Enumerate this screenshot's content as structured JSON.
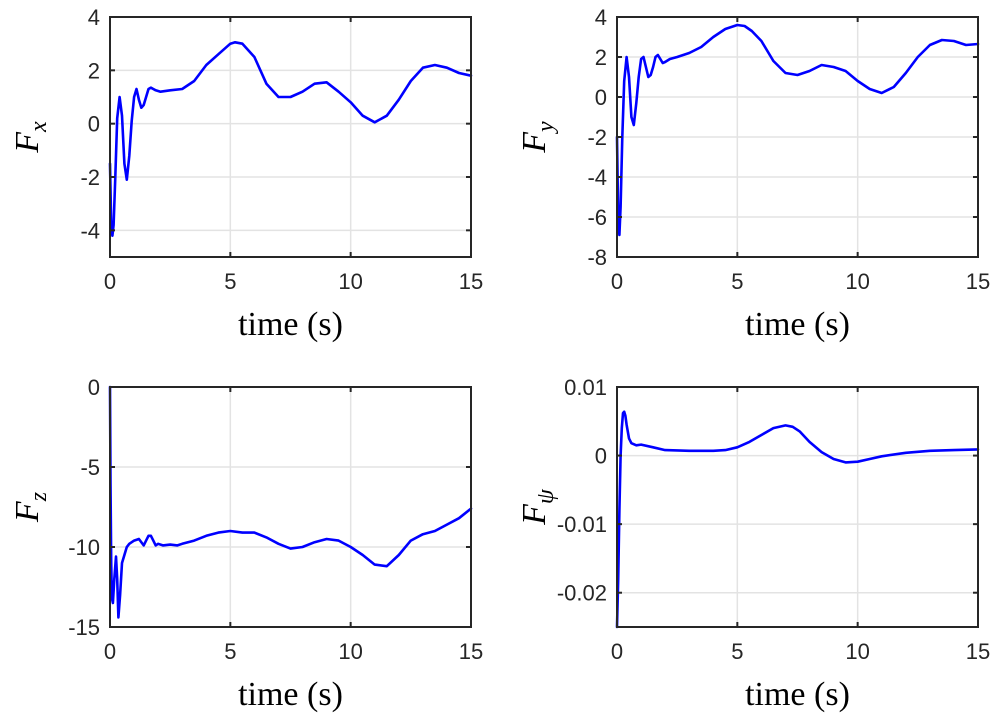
{
  "colors": {
    "series": "#0000ff",
    "axes": "#262626",
    "grid": "#e3e3e3"
  },
  "chart_data": [
    {
      "type": "line",
      "ylabel": "F",
      "ylabel_sub": "x",
      "xlabel": "time (s)",
      "xlim": [
        0,
        15
      ],
      "ylim": [
        -5,
        4
      ],
      "xticks": [
        0,
        5,
        10,
        15
      ],
      "yticks": [
        -4,
        -2,
        0,
        2,
        4
      ],
      "grid": true,
      "series": [
        {
          "x": [
            0,
            0.05,
            0.1,
            0.15,
            0.22,
            0.3,
            0.4,
            0.5,
            0.6,
            0.7,
            0.8,
            0.9,
            1.0,
            1.1,
            1.2,
            1.3,
            1.4,
            1.5,
            1.6,
            1.7,
            1.8,
            1.9,
            2.1,
            2.5,
            3.0,
            3.5,
            4.0,
            4.5,
            5.0,
            5.2,
            5.5,
            6.0,
            6.5,
            7.0,
            7.5,
            8.0,
            8.5,
            9.0,
            9.5,
            10.0,
            10.5,
            11.0,
            11.5,
            12.0,
            12.5,
            13.0,
            13.5,
            14.0,
            14.5,
            15.0
          ],
          "values": [
            -1.5,
            -3.8,
            -4.2,
            -3.8,
            -2.0,
            0.2,
            1.0,
            0.3,
            -1.5,
            -2.1,
            -1.2,
            0.1,
            1.0,
            1.3,
            0.9,
            0.6,
            0.7,
            1.0,
            1.3,
            1.35,
            1.3,
            1.25,
            1.2,
            1.25,
            1.3,
            1.6,
            2.2,
            2.6,
            3.0,
            3.05,
            3.0,
            2.5,
            1.5,
            1.0,
            1.0,
            1.2,
            1.5,
            1.55,
            1.2,
            0.8,
            0.3,
            0.05,
            0.3,
            0.9,
            1.6,
            2.1,
            2.2,
            2.1,
            1.9,
            1.8
          ]
        }
      ]
    },
    {
      "type": "line",
      "ylabel": "F",
      "ylabel_sub": "y",
      "xlabel": "time (s)",
      "xlim": [
        0,
        15
      ],
      "ylim": [
        -8,
        4
      ],
      "xticks": [
        0,
        5,
        10,
        15
      ],
      "yticks": [
        -8,
        -6,
        -4,
        -2,
        0,
        2,
        4
      ],
      "grid": true,
      "series": [
        {
          "x": [
            0,
            0.05,
            0.1,
            0.15,
            0.22,
            0.3,
            0.4,
            0.5,
            0.6,
            0.7,
            0.8,
            0.9,
            1.0,
            1.1,
            1.2,
            1.3,
            1.4,
            1.5,
            1.6,
            1.7,
            1.8,
            1.9,
            2.0,
            2.2,
            2.5,
            3.0,
            3.5,
            4.0,
            4.5,
            5.0,
            5.3,
            5.6,
            6.0,
            6.5,
            7.0,
            7.5,
            8.0,
            8.5,
            9.0,
            9.5,
            10.0,
            10.5,
            11.0,
            11.5,
            12.0,
            12.5,
            13.0,
            13.5,
            14.0,
            14.5,
            15.0
          ],
          "values": [
            -2.0,
            -6.0,
            -6.9,
            -5.5,
            -2.0,
            0.8,
            2.0,
            1.0,
            -1.0,
            -1.4,
            -0.3,
            1.0,
            1.9,
            2.0,
            1.5,
            1.0,
            1.1,
            1.5,
            2.0,
            2.1,
            1.9,
            1.7,
            1.75,
            1.9,
            2.0,
            2.2,
            2.5,
            3.0,
            3.4,
            3.6,
            3.55,
            3.3,
            2.8,
            1.8,
            1.2,
            1.1,
            1.3,
            1.6,
            1.5,
            1.3,
            0.8,
            0.4,
            0.2,
            0.5,
            1.2,
            2.0,
            2.6,
            2.85,
            2.8,
            2.6,
            2.65
          ]
        }
      ]
    },
    {
      "type": "line",
      "ylabel": "F",
      "ylabel_sub": "z",
      "xlabel": "time (s)",
      "xlim": [
        0,
        15
      ],
      "ylim": [
        -15,
        0
      ],
      "xticks": [
        0,
        5,
        10,
        15
      ],
      "yticks": [
        -15,
        -10,
        -5,
        0
      ],
      "grid": true,
      "series": [
        {
          "x": [
            0,
            0.02,
            0.05,
            0.08,
            0.12,
            0.18,
            0.25,
            0.3,
            0.35,
            0.42,
            0.5,
            0.6,
            0.7,
            0.8,
            1.0,
            1.2,
            1.4,
            1.5,
            1.6,
            1.7,
            1.8,
            1.9,
            2.0,
            2.2,
            2.5,
            2.8,
            3.0,
            3.5,
            4.0,
            4.5,
            5.0,
            5.5,
            6.0,
            6.5,
            7.0,
            7.5,
            8.0,
            8.5,
            9.0,
            9.5,
            10.0,
            10.5,
            11.0,
            11.5,
            12.0,
            12.5,
            13.0,
            13.5,
            14.0,
            14.5,
            15.0
          ],
          "values": [
            0,
            -6.0,
            -11.0,
            -13.2,
            -13.5,
            -12.0,
            -10.6,
            -12.0,
            -14.4,
            -13.0,
            -11.0,
            -10.5,
            -10.0,
            -9.8,
            -9.6,
            -9.5,
            -9.9,
            -9.6,
            -9.3,
            -9.3,
            -9.6,
            -9.9,
            -9.8,
            -9.9,
            -9.85,
            -9.9,
            -9.8,
            -9.6,
            -9.3,
            -9.1,
            -9.0,
            -9.1,
            -9.1,
            -9.4,
            -9.8,
            -10.1,
            -10.0,
            -9.7,
            -9.5,
            -9.6,
            -10.0,
            -10.5,
            -11.1,
            -11.2,
            -10.5,
            -9.6,
            -9.2,
            -9.0,
            -8.6,
            -8.2,
            -7.6
          ]
        }
      ]
    },
    {
      "type": "line",
      "ylabel": "F",
      "ylabel_sub": "ψ",
      "xlabel": "time (s)",
      "xlim": [
        0,
        15
      ],
      "ylim": [
        -0.025,
        0.01
      ],
      "xticks": [
        0,
        5,
        10,
        15
      ],
      "yticks": [
        -0.02,
        -0.01,
        0,
        0.01
      ],
      "ytick_labels": [
        "-0.02",
        "-0.01",
        "0",
        "0.01"
      ],
      "grid": true,
      "series": [
        {
          "x": [
            0,
            0.05,
            0.1,
            0.15,
            0.2,
            0.25,
            0.3,
            0.35,
            0.4,
            0.5,
            0.6,
            0.8,
            1.0,
            1.5,
            2.0,
            3.0,
            4.0,
            4.5,
            5.0,
            5.5,
            6.0,
            6.5,
            7.0,
            7.3,
            7.6,
            8.0,
            8.5,
            9.0,
            9.5,
            10.0,
            10.5,
            11.0,
            12.0,
            13.0,
            14.0,
            15.0
          ],
          "values": [
            -0.025,
            -0.018,
            -0.008,
            0.0,
            0.004,
            0.0062,
            0.0064,
            0.0058,
            0.0045,
            0.0025,
            0.0018,
            0.0015,
            0.0016,
            0.0012,
            0.0008,
            0.0007,
            0.0007,
            0.0008,
            0.0012,
            0.002,
            0.003,
            0.004,
            0.0044,
            0.0042,
            0.0035,
            0.002,
            0.0005,
            -0.0005,
            -0.001,
            -0.0009,
            -0.0005,
            -0.0001,
            0.0004,
            0.0007,
            0.0008,
            0.0009
          ]
        }
      ]
    }
  ]
}
